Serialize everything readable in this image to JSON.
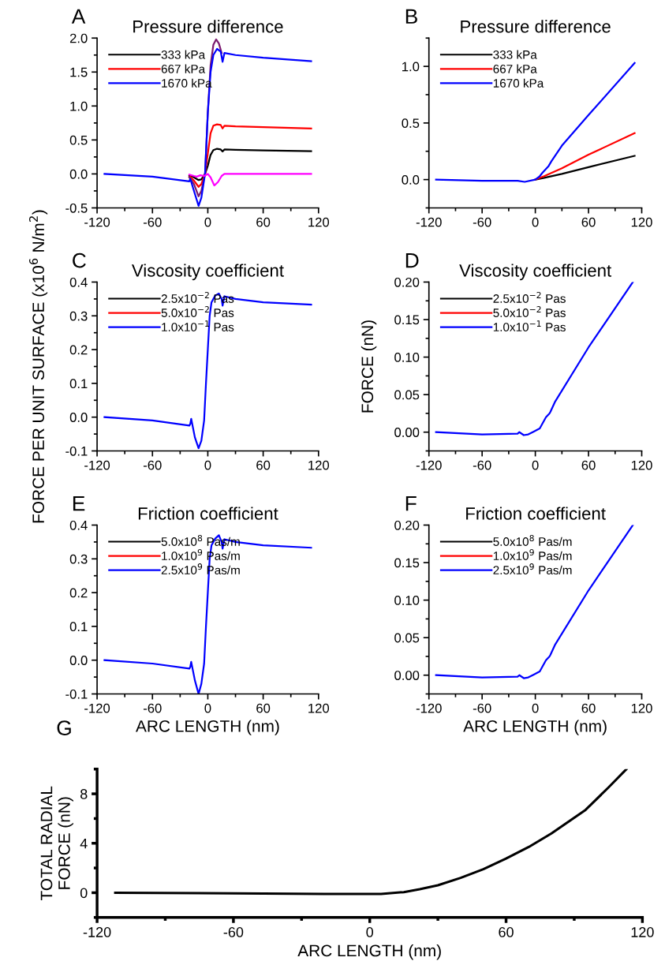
{
  "chart_data": [
    {
      "type": "line",
      "title": "Pressure difference",
      "annotations": [
        "A"
      ],
      "legend": "top left",
      "grid": false,
      "xlim": [
        -120,
        120
      ],
      "xticks": [
        -120,
        -60,
        0,
        60,
        120
      ],
      "ylim": [
        -0.5,
        2.0
      ],
      "yticks": [
        -0.5,
        {
          "value": 0,
          "label": "0.0"
        },
        0.5,
        {
          "value": 1,
          "label": "1.0"
        },
        1.5,
        {
          "value": 2,
          "label": "2.0"
        }
      ],
      "series": [
        {
          "name": "333 kPa",
          "color": "#000000",
          "x": [
            -20,
            -19,
            -15,
            -10,
            -7,
            -3,
            0,
            3,
            6,
            10,
            14,
            16,
            18,
            30,
            60,
            112
          ],
          "values": [
            -0.03,
            -0.02,
            -0.05,
            -0.09,
            -0.08,
            0,
            0.12,
            0.28,
            0.35,
            0.37,
            0.36,
            0.33,
            0.36,
            0.355,
            0.345,
            0.335
          ]
        },
        {
          "name": "667 kPa",
          "color": "#ff0000",
          "x": [
            -20,
            -19,
            -15,
            -10,
            -7,
            -3,
            0,
            3,
            6,
            10,
            14,
            16,
            18,
            30,
            60,
            112
          ],
          "values": [
            -0.05,
            -0.04,
            -0.1,
            -0.19,
            -0.15,
            0,
            0.3,
            0.6,
            0.71,
            0.73,
            0.72,
            0.67,
            0.71,
            0.7,
            0.69,
            0.67
          ]
        },
        {
          "color": "#7b1a6e",
          "x": [
            -20,
            -15,
            -10,
            -7,
            -3,
            0,
            3,
            6,
            9,
            12,
            15
          ],
          "values": [
            -0.05,
            -0.15,
            -0.33,
            -0.25,
            0,
            0.9,
            1.6,
            1.9,
            1.98,
            1.92,
            1.78
          ]
        },
        {
          "name": "1670 kPa",
          "color": "#0000ff",
          "x": [
            -112,
            -60,
            -20,
            -19,
            -15,
            -10,
            -7,
            -3,
            0,
            3,
            6,
            10,
            14,
            16,
            18,
            30,
            60,
            112
          ],
          "values": [
            0,
            -0.04,
            -0.11,
            -0.07,
            -0.25,
            -0.47,
            -0.35,
            0,
            0.9,
            1.5,
            1.75,
            1.84,
            1.8,
            1.65,
            1.78,
            1.75,
            1.71,
            1.66
          ]
        },
        {
          "color": "#ff00ff",
          "x": [
            -20,
            -15,
            -12,
            -8,
            -4,
            0,
            3,
            7,
            11,
            15,
            18,
            112
          ],
          "values": [
            -0.01,
            -0.03,
            -0.04,
            -0.02,
            -0.03,
            0,
            -0.05,
            -0.17,
            -0.12,
            -0.03,
            0,
            0
          ]
        }
      ]
    },
    {
      "type": "line",
      "title": "Pressure difference",
      "annotations": [
        "B"
      ],
      "legend": "top left",
      "grid": false,
      "xlim": [
        -120,
        120
      ],
      "xticks": [
        -120,
        -60,
        0,
        60,
        120
      ],
      "ylim": [
        -0.25,
        1.25
      ],
      "yticks": [
        {
          "value": 0,
          "label": "0.0"
        },
        0.5,
        {
          "value": 1,
          "label": "1.0"
        }
      ],
      "series": [
        {
          "name": "333 kPa",
          "color": "#000000",
          "x": [
            0,
            10,
            30,
            60,
            112
          ],
          "values": [
            0,
            0.015,
            0.05,
            0.11,
            0.21
          ]
        },
        {
          "name": "667 kPa",
          "color": "#ff0000",
          "x": [
            0,
            10,
            30,
            60,
            112
          ],
          "values": [
            0,
            0.03,
            0.1,
            0.22,
            0.41
          ]
        },
        {
          "name": "1670 kPa",
          "color": "#0000ff",
          "x": [
            -112,
            -60,
            -20,
            -12,
            0,
            5,
            8,
            15,
            18,
            30,
            60,
            112
          ],
          "values": [
            0,
            -0.01,
            -0.01,
            -0.02,
            0,
            0.03,
            0.06,
            0.12,
            0.16,
            0.3,
            0.57,
            1.03
          ]
        }
      ]
    },
    {
      "type": "line",
      "title": "Viscosity coefficient",
      "annotations": [
        "C"
      ],
      "ylabel": "FORCE PER UNIT SURFACE (x10$^{6}$ N/m$^{2}$)",
      "legend": "top left",
      "grid": false,
      "xlim": [
        -120,
        120
      ],
      "xticks": [
        -120,
        -60,
        0,
        60,
        120
      ],
      "ylim": [
        -0.1,
        0.4
      ],
      "yticks": [
        -0.1,
        {
          "value": 0,
          "label": "0.0"
        },
        0.1,
        0.2,
        0.3,
        0.4
      ],
      "x": [
        -112,
        -60,
        -20,
        -19,
        -18,
        -14,
        -10,
        -7,
        -4,
        -2,
        0,
        2,
        4,
        8,
        12,
        15,
        16,
        18,
        30,
        60,
        112
      ],
      "series": [
        {
          "name": "2.5x10$^{−2}$ Pas",
          "color": "#000000",
          "values": [
            null,
            null,
            null,
            null,
            null,
            null,
            null,
            null,
            null,
            null,
            null,
            null,
            null,
            null,
            null,
            null,
            null,
            null,
            null,
            null,
            null
          ]
        },
        {
          "name": "5.0x10$^{−2}$ Pas",
          "color": "#ff0000",
          "values": [
            null,
            null,
            null,
            null,
            null,
            null,
            null,
            null,
            null,
            null,
            null,
            null,
            null,
            null,
            null,
            null,
            null,
            null,
            null,
            null,
            null
          ]
        },
        {
          "name": "1.0x10$^{−1}$ Pas",
          "color": "#0000ff",
          "values": [
            0,
            -0.01,
            -0.025,
            -0.02,
            -0.005,
            -0.06,
            -0.092,
            -0.07,
            -0.01,
            0.1,
            0.2,
            0.3,
            0.34,
            0.36,
            0.366,
            0.35,
            0.33,
            0.358,
            0.35,
            0.34,
            0.333
          ]
        }
      ]
    },
    {
      "type": "line",
      "title": "Viscosity coefficient",
      "annotations": [
        "D"
      ],
      "ylabel": "FORCE (nN)",
      "legend": "top left",
      "grid": false,
      "xlim": [
        -120,
        120
      ],
      "xticks": [
        -120,
        -60,
        0,
        60,
        120
      ],
      "ylim": [
        -0.025,
        0.2
      ],
      "yticks": [
        {
          "value": 0,
          "label": "0.00"
        },
        {
          "value": 0.05,
          "label": "0.05"
        },
        {
          "value": 0.1,
          "label": "0.10"
        },
        {
          "value": 0.15,
          "label": "0.15"
        },
        {
          "value": 0.2,
          "label": "0.20"
        }
      ],
      "x": [
        -112,
        -60,
        -20,
        -18,
        -13,
        -8,
        -3,
        5,
        12,
        16,
        17,
        22,
        60,
        110
      ],
      "series": [
        {
          "name": "2.5x10$^{−2}$ Pas",
          "color": "#000000",
          "values": [
            null,
            null,
            null,
            null,
            null,
            null,
            null,
            null,
            null,
            null,
            null,
            null,
            null,
            null
          ]
        },
        {
          "name": "5.0x10$^{−2}$ Pas",
          "color": "#ff0000",
          "values": [
            null,
            null,
            null,
            null,
            null,
            null,
            null,
            null,
            null,
            null,
            null,
            null,
            null,
            null
          ]
        },
        {
          "name": "1.0x10$^{−1}$ Pas",
          "color": "#0000ff",
          "values": [
            0,
            -0.003,
            -0.002,
            0,
            -0.004,
            -0.003,
            0,
            0.005,
            0.02,
            0.025,
            0.027,
            0.04,
            0.113,
            0.2
          ]
        }
      ]
    },
    {
      "type": "line",
      "title": "Friction coefficient",
      "annotations": [
        "E"
      ],
      "xlabel": "ARC LENGTH (nm)",
      "legend": "top left",
      "grid": false,
      "xlim": [
        -120,
        120
      ],
      "xticks": [
        -120,
        -60,
        0,
        60,
        120
      ],
      "ylim": [
        -0.1,
        0.4
      ],
      "yticks": [
        -0.1,
        {
          "value": 0,
          "label": "0.0"
        },
        0.1,
        0.2,
        0.3,
        0.4
      ],
      "x": [
        -112,
        -60,
        -20,
        -19,
        -18,
        -14,
        -10,
        -7,
        -4,
        -2,
        0,
        2,
        4,
        8,
        12,
        15,
        16,
        18,
        30,
        60,
        112
      ],
      "series": [
        {
          "name": "5.0x10$^{8}$ Pas/m",
          "color": "#000000",
          "values": [
            null,
            null,
            null,
            null,
            null,
            null,
            null,
            null,
            null,
            null,
            null,
            null,
            null,
            null,
            null,
            null,
            null,
            null,
            null,
            null,
            null
          ]
        },
        {
          "name": "1.0x10$^{9}$ Pas/m",
          "color": "#ff0000",
          "values": [
            null,
            null,
            null,
            null,
            null,
            null,
            null,
            null,
            null,
            null,
            null,
            null,
            null,
            null,
            null,
            null,
            null,
            null,
            null,
            null,
            null
          ]
        },
        {
          "name": "2.5x10$^{9}$ Pas/m",
          "color": "#0000ff",
          "values": [
            0,
            -0.01,
            -0.025,
            -0.02,
            -0.005,
            -0.06,
            -0.1,
            -0.07,
            -0.01,
            0.1,
            0.2,
            0.3,
            0.34,
            0.36,
            0.37,
            0.35,
            0.33,
            0.358,
            0.35,
            0.34,
            0.333
          ]
        }
      ]
    },
    {
      "type": "line",
      "title": "Friction coefficient",
      "annotations": [
        "F"
      ],
      "xlabel": "ARC LENGTH (nm)",
      "legend": "top left",
      "grid": false,
      "xlim": [
        -120,
        120
      ],
      "xticks": [
        -120,
        -60,
        0,
        60,
        120
      ],
      "ylim": [
        -0.025,
        0.2
      ],
      "yticks": [
        {
          "value": 0,
          "label": "0.00"
        },
        {
          "value": 0.05,
          "label": "0.05"
        },
        {
          "value": 0.1,
          "label": "0.10"
        },
        {
          "value": 0.15,
          "label": "0.15"
        },
        {
          "value": 0.2,
          "label": "0.20"
        }
      ],
      "x": [
        -112,
        -60,
        -20,
        -18,
        -13,
        -8,
        -3,
        5,
        12,
        16,
        17,
        22,
        60,
        110
      ],
      "series": [
        {
          "name": "5.0x10$^{8}$ Pas/m",
          "color": "#000000",
          "values": [
            null,
            null,
            null,
            null,
            null,
            null,
            null,
            null,
            null,
            null,
            null,
            null,
            null,
            null
          ]
        },
        {
          "name": "1.0x10$^{9}$ Pas/m",
          "color": "#ff0000",
          "values": [
            null,
            null,
            null,
            null,
            null,
            null,
            null,
            null,
            null,
            null,
            null,
            null,
            null,
            null
          ]
        },
        {
          "name": "2.5x10$^{9}$ Pas/m",
          "color": "#0000ff",
          "values": [
            0,
            -0.003,
            -0.002,
            0,
            -0.004,
            -0.003,
            0,
            0.005,
            0.02,
            0.025,
            0.027,
            0.04,
            0.113,
            0.2
          ]
        }
      ]
    },
    {
      "type": "line",
      "annotations": [
        "G"
      ],
      "xlabel": "ARC LENGTH (nm)",
      "ylabel": "TOTAL RADIAL\nFORCE (nN)",
      "grid": false,
      "xlim": [
        -120,
        120
      ],
      "xticks": [
        -120,
        -60,
        0,
        60,
        120
      ],
      "ylim": [
        -2,
        10
      ],
      "yticks": [
        0,
        4,
        8
      ],
      "x": [
        -112,
        -60,
        -20,
        5,
        15,
        22,
        30,
        40,
        50,
        60,
        70,
        80,
        95,
        105,
        113
      ],
      "series": [
        {
          "color": "#000000",
          "values": [
            0,
            -0.05,
            -0.1,
            -0.1,
            0.05,
            0.28,
            0.6,
            1.2,
            1.9,
            2.76,
            3.7,
            4.8,
            6.7,
            8.5,
            10
          ]
        }
      ]
    }
  ]
}
